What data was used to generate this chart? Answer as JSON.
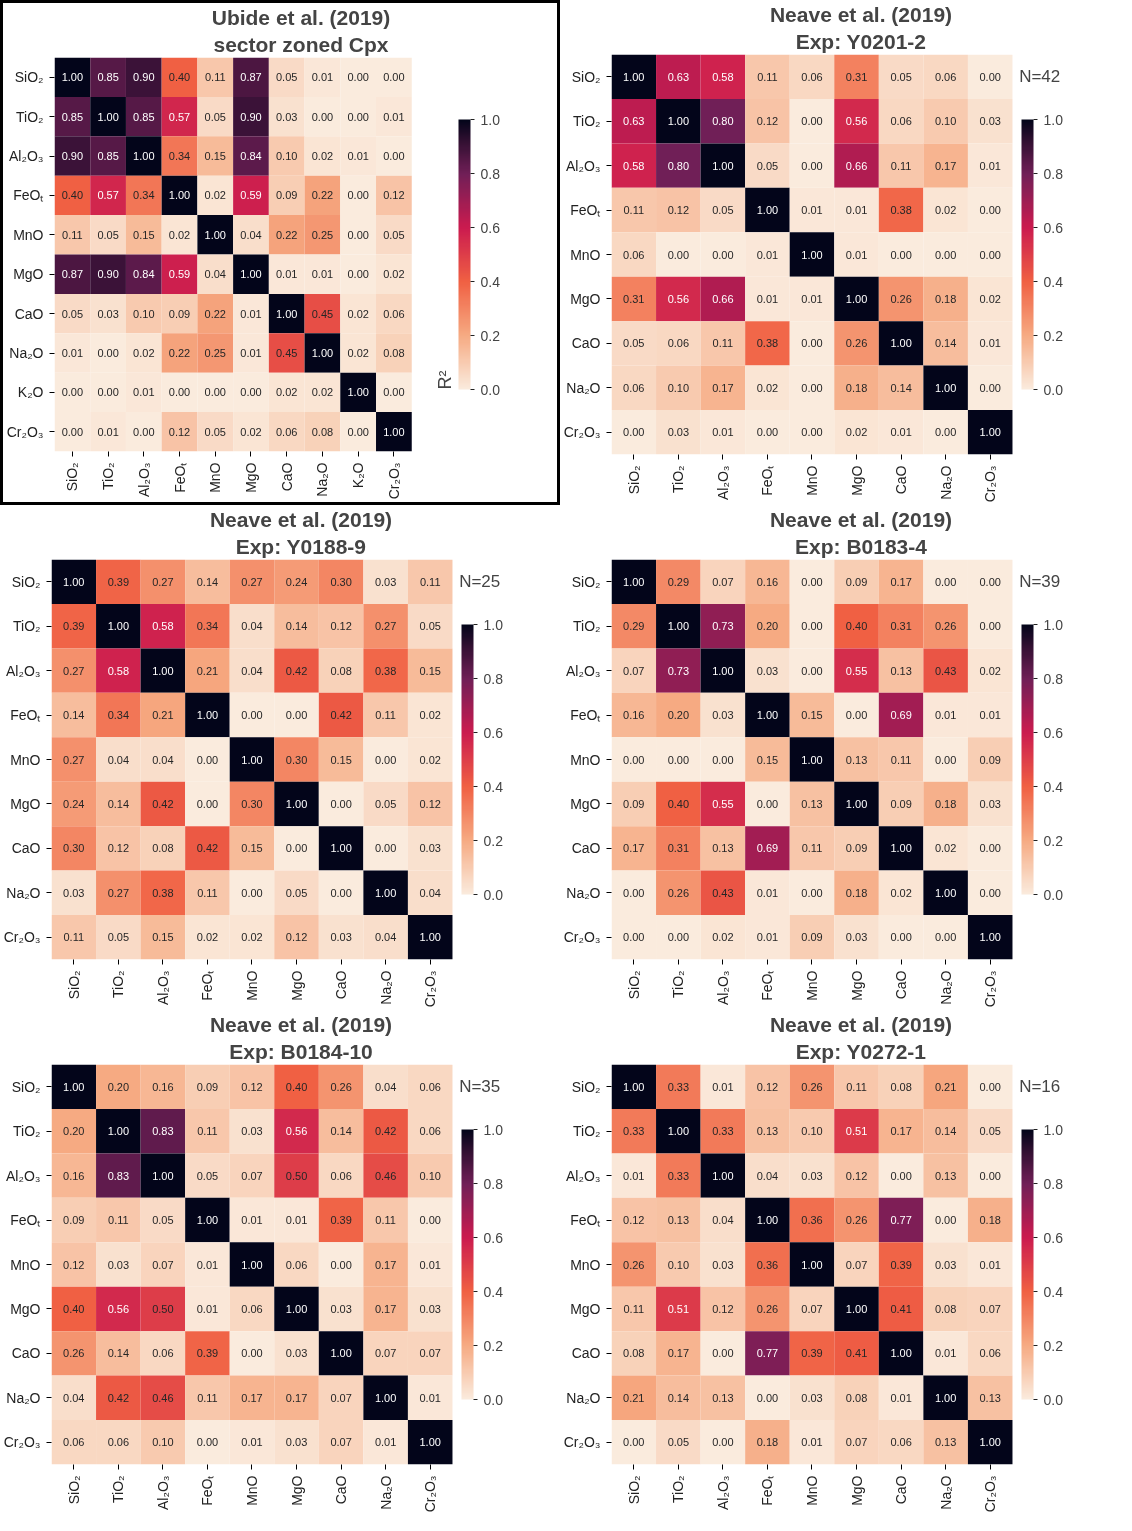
{
  "chart_data": [
    {
      "type": "heatmap",
      "title": "Ubide et al. (2019)",
      "subtitle": "sector zoned Cpx",
      "clabel": "R²",
      "clim": [
        0,
        1
      ],
      "cticks": [
        {
          "value": 0,
          "label": "0.0"
        },
        {
          "value": 0.2,
          "label": "0.2"
        },
        {
          "value": 0.4,
          "label": "0.4"
        },
        {
          "value": 0.6,
          "label": "0.6"
        },
        {
          "value": 0.8,
          "label": "0.8"
        },
        {
          "value": 1,
          "label": "1.0"
        }
      ],
      "categories": [
        "SiO₂",
        "TiO₂",
        "Al₂O₃",
        "FeOₜ",
        "MnO",
        "MgO",
        "CaO",
        "Na₂O",
        "K₂O",
        "Cr₂O₃"
      ],
      "y_categories": [
        "SiO₂",
        "TiO₂",
        "Al₂O₃",
        "FeOₜ",
        "MnO",
        "MgO",
        "CaO",
        "Na₂O",
        "K₂O",
        "Cr₂O₃"
      ],
      "cells": [
        [
          1.0,
          0.85,
          0.9,
          0.4,
          0.11,
          0.87,
          0.05,
          0.01,
          0.0,
          0.0
        ],
        [
          0.85,
          1.0,
          0.85,
          0.57,
          0.05,
          0.9,
          0.03,
          0.0,
          0.0,
          0.01
        ],
        [
          0.9,
          0.85,
          1.0,
          0.34,
          0.15,
          0.84,
          0.1,
          0.02,
          0.01,
          0.0
        ],
        [
          0.4,
          0.57,
          0.34,
          1.0,
          0.02,
          0.59,
          0.09,
          0.22,
          0.0,
          0.12
        ],
        [
          0.11,
          0.05,
          0.15,
          0.02,
          1.0,
          0.04,
          0.22,
          0.25,
          0.0,
          0.05
        ],
        [
          0.87,
          0.9,
          0.84,
          0.59,
          0.04,
          1.0,
          0.01,
          0.01,
          0.0,
          0.02
        ],
        [
          0.05,
          0.03,
          0.1,
          0.09,
          0.22,
          0.01,
          1.0,
          0.45,
          0.02,
          0.06
        ],
        [
          0.01,
          0.0,
          0.02,
          0.22,
          0.25,
          0.01,
          0.45,
          1.0,
          0.02,
          0.08
        ],
        [
          0.0,
          0.0,
          0.01,
          0.0,
          0.0,
          0.0,
          0.02,
          0.02,
          1.0,
          0.0
        ],
        [
          0.0,
          0.01,
          0.0,
          0.12,
          0.05,
          0.02,
          0.06,
          0.08,
          0.0,
          1.0
        ]
      ],
      "cell_labels": [
        [
          "1.00",
          "0.85",
          "0.90",
          "0.40",
          "0.11",
          "0.87",
          "0.05",
          "0.01",
          "0.00",
          "0.00"
        ],
        [
          "0.85",
          "1.00",
          "0.85",
          "0.57",
          "0.05",
          "0.90",
          "0.03",
          "0.00",
          "0.00",
          "0.01"
        ],
        [
          "0.90",
          "0.85",
          "1.00",
          "0.34",
          "0.15",
          "0.84",
          "0.10",
          "0.02",
          "0.01",
          "0.00"
        ],
        [
          "0.40",
          "0.57",
          "0.34",
          "1.00",
          "0.02",
          "0.59",
          "0.09",
          "0.22",
          "0.00",
          "0.12"
        ],
        [
          "0.11",
          "0.05",
          "0.15",
          "0.02",
          "1.00",
          "0.04",
          "0.22",
          "0.25",
          "0.00",
          "0.05"
        ],
        [
          "0.87",
          "0.90",
          "0.84",
          "0.59",
          "0.04",
          "1.00",
          "0.01",
          "0.01",
          "0.00",
          "0.02"
        ],
        [
          "0.05",
          "0.03",
          "0.10",
          "0.09",
          "0.22",
          "0.01",
          "1.00",
          "0.45",
          "0.02",
          "0.06"
        ],
        [
          "0.01",
          "0.00",
          "0.02",
          "0.22",
          "0.25",
          "0.01",
          "0.45",
          "1.00",
          "0.02",
          "0.08"
        ],
        [
          "0.00",
          "0.00",
          "0.01",
          "0.00",
          "0.00",
          "0.00",
          "0.02",
          "0.02",
          "1.00",
          "0.00"
        ],
        [
          "0.00",
          "0.01",
          "0.00",
          "0.12",
          "0.05",
          "0.02",
          "0.06",
          "0.08",
          "0.00",
          "1.00"
        ]
      ]
    },
    {
      "type": "heatmap",
      "title": "Neave et al. (2019)",
      "subtitle": "Exp: Y0201-2",
      "annotations": [
        "N=42"
      ],
      "clim": [
        0,
        1
      ],
      "cticks": [
        {
          "value": 0,
          "label": "0.0"
        },
        {
          "value": 0.2,
          "label": "0.2"
        },
        {
          "value": 0.4,
          "label": "0.4"
        },
        {
          "value": 0.6,
          "label": "0.6"
        },
        {
          "value": 0.8,
          "label": "0.8"
        },
        {
          "value": 1,
          "label": "1.0"
        }
      ],
      "categories": [
        "SiO₂",
        "TiO₂",
        "Al₂O₃",
        "FeOₜ",
        "MnO",
        "MgO",
        "CaO",
        "Na₂O",
        "Cr₂O₃"
      ],
      "y_categories": [
        "SiO₂",
        "TiO₂",
        "Al₂O₃",
        "FeOₜ",
        "MnO",
        "MgO",
        "CaO",
        "Na₂O",
        "Cr₂O₃"
      ],
      "cells": [
        [
          1.0,
          0.63,
          0.58,
          0.11,
          0.06,
          0.31,
          0.05,
          0.06,
          0.0
        ],
        [
          0.63,
          1.0,
          0.8,
          0.12,
          0.0,
          0.56,
          0.06,
          0.1,
          0.03
        ],
        [
          0.58,
          0.8,
          1.0,
          0.05,
          0.0,
          0.66,
          0.11,
          0.17,
          0.01
        ],
        [
          0.11,
          0.12,
          0.05,
          1.0,
          0.01,
          0.01,
          0.38,
          0.02,
          0.0
        ],
        [
          0.06,
          0.0,
          0.0,
          0.01,
          1.0,
          0.01,
          0.0,
          0.0,
          0.0
        ],
        [
          0.31,
          0.56,
          0.66,
          0.01,
          0.01,
          1.0,
          0.26,
          0.18,
          0.02
        ],
        [
          0.05,
          0.06,
          0.11,
          0.38,
          0.0,
          0.26,
          1.0,
          0.14,
          0.01
        ],
        [
          0.06,
          0.1,
          0.17,
          0.02,
          0.0,
          0.18,
          0.14,
          1.0,
          0.0
        ],
        [
          0.0,
          0.03,
          0.01,
          0.0,
          0.0,
          0.02,
          0.01,
          0.0,
          1.0
        ]
      ],
      "cell_labels": [
        [
          "1.00",
          "0.63",
          "0.58",
          "0.11",
          "0.06",
          "0.31",
          "0.05",
          "0.06",
          "0.00"
        ],
        [
          "0.63",
          "1.00",
          "0.80",
          "0.12",
          "0.00",
          "0.56",
          "0.06",
          "0.10",
          "0.03"
        ],
        [
          "0.58",
          "0.80",
          "1.00",
          "0.05",
          "0.00",
          "0.66",
          "0.11",
          "0.17",
          "0.01"
        ],
        [
          "0.11",
          "0.12",
          "0.05",
          "1.00",
          "0.01",
          "0.01",
          "0.38",
          "0.02",
          "0.00"
        ],
        [
          "0.06",
          "0.00",
          "0.00",
          "0.01",
          "1.00",
          "0.01",
          "0.00",
          "0.00",
          "0.00"
        ],
        [
          "0.31",
          "0.56",
          "0.66",
          "0.01",
          "0.01",
          "1.00",
          "0.26",
          "0.18",
          "0.02"
        ],
        [
          "0.05",
          "0.06",
          "0.11",
          "0.38",
          "0.00",
          "0.26",
          "1.00",
          "0.14",
          "0.01"
        ],
        [
          "0.06",
          "0.10",
          "0.17",
          "0.02",
          "0.00",
          "0.18",
          "0.14",
          "1.00",
          "0.00"
        ],
        [
          "0.00",
          "0.03",
          "0.01",
          "0.00",
          "0.00",
          "0.02",
          "0.01",
          "0.00",
          "1.00"
        ]
      ]
    },
    {
      "type": "heatmap",
      "title": "Neave et al. (2019)",
      "subtitle": "Exp: Y0188-9",
      "annotations": [
        "N=25"
      ],
      "clim": [
        0,
        1
      ],
      "cticks": [
        {
          "value": 0,
          "label": "0.0"
        },
        {
          "value": 0.2,
          "label": "0.2"
        },
        {
          "value": 0.4,
          "label": "0.4"
        },
        {
          "value": 0.6,
          "label": "0.6"
        },
        {
          "value": 0.8,
          "label": "0.8"
        },
        {
          "value": 1,
          "label": "1.0"
        }
      ],
      "categories": [
        "SiO₂",
        "TiO₂",
        "Al₂O₃",
        "FeOₜ",
        "MnO",
        "MgO",
        "CaO",
        "Na₂O",
        "Cr₂O₃"
      ],
      "y_categories": [
        "SiO₂",
        "TiO₂",
        "Al₂O₃",
        "FeOₜ",
        "MnO",
        "MgO",
        "CaO",
        "Na₂O",
        "Cr₂O₃"
      ],
      "cells": [
        [
          1.0,
          0.39,
          0.27,
          0.14,
          0.27,
          0.24,
          0.3,
          0.03,
          0.11
        ],
        [
          0.39,
          1.0,
          0.58,
          0.34,
          0.04,
          0.14,
          0.12,
          0.27,
          0.05
        ],
        [
          0.27,
          0.58,
          1.0,
          0.21,
          0.04,
          0.42,
          0.08,
          0.38,
          0.15
        ],
        [
          0.14,
          0.34,
          0.21,
          1.0,
          0.0,
          0.0,
          0.42,
          0.11,
          0.02
        ],
        [
          0.27,
          0.04,
          0.04,
          0.0,
          1.0,
          0.3,
          0.15,
          0.0,
          0.02
        ],
        [
          0.24,
          0.14,
          0.42,
          0.0,
          0.3,
          1.0,
          0.0,
          0.05,
          0.12
        ],
        [
          0.3,
          0.12,
          0.08,
          0.42,
          0.15,
          0.0,
          1.0,
          0.0,
          0.03
        ],
        [
          0.03,
          0.27,
          0.38,
          0.11,
          0.0,
          0.05,
          0.0,
          1.0,
          0.04
        ],
        [
          0.11,
          0.05,
          0.15,
          0.02,
          0.02,
          0.12,
          0.03,
          0.04,
          1.0
        ]
      ],
      "cell_labels": [
        [
          "1.00",
          "0.39",
          "0.27",
          "0.14",
          "0.27",
          "0.24",
          "0.30",
          "0.03",
          "0.11"
        ],
        [
          "0.39",
          "1.00",
          "0.58",
          "0.34",
          "0.04",
          "0.14",
          "0.12",
          "0.27",
          "0.05"
        ],
        [
          "0.27",
          "0.58",
          "1.00",
          "0.21",
          "0.04",
          "0.42",
          "0.08",
          "0.38",
          "0.15"
        ],
        [
          "0.14",
          "0.34",
          "0.21",
          "1.00",
          "0.00",
          "0.00",
          "0.42",
          "0.11",
          "0.02"
        ],
        [
          "0.27",
          "0.04",
          "0.04",
          "0.00",
          "1.00",
          "0.30",
          "0.15",
          "0.00",
          "0.02"
        ],
        [
          "0.24",
          "0.14",
          "0.42",
          "0.00",
          "0.30",
          "1.00",
          "0.00",
          "0.05",
          "0.12"
        ],
        [
          "0.30",
          "0.12",
          "0.08",
          "0.42",
          "0.15",
          "0.00",
          "1.00",
          "0.00",
          "0.03"
        ],
        [
          "0.03",
          "0.27",
          "0.38",
          "0.11",
          "0.00",
          "0.05",
          "0.00",
          "1.00",
          "0.04"
        ],
        [
          "0.11",
          "0.05",
          "0.15",
          "0.02",
          "0.02",
          "0.12",
          "0.03",
          "0.04",
          "1.00"
        ]
      ]
    },
    {
      "type": "heatmap",
      "title": "Neave et al. (2019)",
      "subtitle": "Exp: B0183-4",
      "annotations": [
        "N=39"
      ],
      "clim": [
        0,
        1
      ],
      "cticks": [
        {
          "value": 0,
          "label": "0.0"
        },
        {
          "value": 0.2,
          "label": "0.2"
        },
        {
          "value": 0.4,
          "label": "0.4"
        },
        {
          "value": 0.6,
          "label": "0.6"
        },
        {
          "value": 0.8,
          "label": "0.8"
        },
        {
          "value": 1,
          "label": "1.0"
        }
      ],
      "categories": [
        "SiO₂",
        "TiO₂",
        "Al₂O₃",
        "FeOₜ",
        "MnO",
        "MgO",
        "CaO",
        "Na₂O",
        "Cr₂O₃"
      ],
      "y_categories": [
        "SiO₂",
        "TiO₂",
        "Al₂O₃",
        "FeOₜ",
        "MnO",
        "MgO",
        "CaO",
        "Na₂O",
        "Cr₂O₃"
      ],
      "cells": [
        [
          1.0,
          0.29,
          0.07,
          0.16,
          0.0,
          0.09,
          0.17,
          0.0,
          0.0
        ],
        [
          0.29,
          1.0,
          0.73,
          0.2,
          0.0,
          0.4,
          0.31,
          0.26,
          0.0
        ],
        [
          0.07,
          0.73,
          1.0,
          0.03,
          0.0,
          0.55,
          0.13,
          0.43,
          0.02
        ],
        [
          0.16,
          0.2,
          0.03,
          1.0,
          0.15,
          0.0,
          0.69,
          0.01,
          0.01
        ],
        [
          0.0,
          0.0,
          0.0,
          0.15,
          1.0,
          0.13,
          0.11,
          0.0,
          0.09
        ],
        [
          0.09,
          0.4,
          0.55,
          0.0,
          0.13,
          1.0,
          0.09,
          0.18,
          0.03
        ],
        [
          0.17,
          0.31,
          0.13,
          0.69,
          0.11,
          0.09,
          1.0,
          0.02,
          0.0
        ],
        [
          0.0,
          0.26,
          0.43,
          0.01,
          0.0,
          0.18,
          0.02,
          1.0,
          0.0
        ],
        [
          0.0,
          0.0,
          0.02,
          0.01,
          0.09,
          0.03,
          0.0,
          0.0,
          1.0
        ]
      ],
      "cell_labels": [
        [
          "1.00",
          "0.29",
          "0.07",
          "0.16",
          "0.00",
          "0.09",
          "0.17",
          "0.00",
          "0.00"
        ],
        [
          "0.29",
          "1.00",
          "0.73",
          "0.20",
          "0.00",
          "0.40",
          "0.31",
          "0.26",
          "0.00"
        ],
        [
          "0.07",
          "0.73",
          "1.00",
          "0.03",
          "0.00",
          "0.55",
          "0.13",
          "0.43",
          "0.02"
        ],
        [
          "0.16",
          "0.20",
          "0.03",
          "1.00",
          "0.15",
          "0.00",
          "0.69",
          "0.01",
          "0.01"
        ],
        [
          "0.00",
          "0.00",
          "0.00",
          "0.15",
          "1.00",
          "0.13",
          "0.11",
          "0.00",
          "0.09"
        ],
        [
          "0.09",
          "0.40",
          "0.55",
          "0.00",
          "0.13",
          "1.00",
          "0.09",
          "0.18",
          "0.03"
        ],
        [
          "0.17",
          "0.31",
          "0.13",
          "0.69",
          "0.11",
          "0.09",
          "1.00",
          "0.02",
          "0.00"
        ],
        [
          "0.00",
          "0.26",
          "0.43",
          "0.01",
          "0.00",
          "0.18",
          "0.02",
          "1.00",
          "0.00"
        ],
        [
          "0.00",
          "0.00",
          "0.02",
          "0.01",
          "0.09",
          "0.03",
          "0.00",
          "0.00",
          "1.00"
        ]
      ]
    },
    {
      "type": "heatmap",
      "title": "Neave et al. (2019)",
      "subtitle": "Exp: B0184-10",
      "annotations": [
        "N=35"
      ],
      "clim": [
        0,
        1
      ],
      "cticks": [
        {
          "value": 0,
          "label": "0.0"
        },
        {
          "value": 0.2,
          "label": "0.2"
        },
        {
          "value": 0.4,
          "label": "0.4"
        },
        {
          "value": 0.6,
          "label": "0.6"
        },
        {
          "value": 0.8,
          "label": "0.8"
        },
        {
          "value": 1,
          "label": "1.0"
        }
      ],
      "categories": [
        "SiO₂",
        "TiO₂",
        "Al₂O₃",
        "FeOₜ",
        "MnO",
        "MgO",
        "CaO",
        "Na₂O",
        "Cr₂O₃"
      ],
      "y_categories": [
        "SiO₂",
        "TiO₂",
        "Al₂O₃",
        "FeOₜ",
        "MnO",
        "MgO",
        "CaO",
        "Na₂O",
        "Cr₂O₃"
      ],
      "cells": [
        [
          1.0,
          0.2,
          0.16,
          0.09,
          0.12,
          0.4,
          0.26,
          0.04,
          0.06
        ],
        [
          0.2,
          1.0,
          0.83,
          0.11,
          0.03,
          0.56,
          0.14,
          0.42,
          0.06
        ],
        [
          0.16,
          0.83,
          1.0,
          0.05,
          0.07,
          0.5,
          0.06,
          0.46,
          0.1
        ],
        [
          0.09,
          0.11,
          0.05,
          1.0,
          0.01,
          0.01,
          0.39,
          0.11,
          0.0
        ],
        [
          0.12,
          0.03,
          0.07,
          0.01,
          1.0,
          0.06,
          0.0,
          0.17,
          0.01
        ],
        [
          0.4,
          0.56,
          0.5,
          0.01,
          0.06,
          1.0,
          0.03,
          0.17,
          0.03
        ],
        [
          0.26,
          0.14,
          0.06,
          0.39,
          0.0,
          0.03,
          1.0,
          0.07,
          0.07
        ],
        [
          0.04,
          0.42,
          0.46,
          0.11,
          0.17,
          0.17,
          0.07,
          1.0,
          0.01
        ],
        [
          0.06,
          0.06,
          0.1,
          0.0,
          0.01,
          0.03,
          0.07,
          0.01,
          1.0
        ]
      ],
      "cell_labels": [
        [
          "1.00",
          "0.20",
          "0.16",
          "0.09",
          "0.12",
          "0.40",
          "0.26",
          "0.04",
          "0.06"
        ],
        [
          "0.20",
          "1.00",
          "0.83",
          "0.11",
          "0.03",
          "0.56",
          "0.14",
          "0.42",
          "0.06"
        ],
        [
          "0.16",
          "0.83",
          "1.00",
          "0.05",
          "0.07",
          "0.50",
          "0.06",
          "0.46",
          "0.10"
        ],
        [
          "0.09",
          "0.11",
          "0.05",
          "1.00",
          "0.01",
          "0.01",
          "0.39",
          "0.11",
          "0.00"
        ],
        [
          "0.12",
          "0.03",
          "0.07",
          "0.01",
          "1.00",
          "0.06",
          "0.00",
          "0.17",
          "0.01"
        ],
        [
          "0.40",
          "0.56",
          "0.50",
          "0.01",
          "0.06",
          "1.00",
          "0.03",
          "0.17",
          "0.03"
        ],
        [
          "0.26",
          "0.14",
          "0.06",
          "0.39",
          "0.00",
          "0.03",
          "1.00",
          "0.07",
          "0.07"
        ],
        [
          "0.04",
          "0.42",
          "0.46",
          "0.11",
          "0.17",
          "0.17",
          "0.07",
          "1.00",
          "0.01"
        ],
        [
          "0.06",
          "0.06",
          "0.10",
          "0.00",
          "0.01",
          "0.03",
          "0.07",
          "0.01",
          "1.00"
        ]
      ]
    },
    {
      "type": "heatmap",
      "title": "Neave et al. (2019)",
      "subtitle": "Exp: Y0272-1",
      "annotations": [
        "N=16"
      ],
      "clim": [
        0,
        1
      ],
      "cticks": [
        {
          "value": 0,
          "label": "0.0"
        },
        {
          "value": 0.2,
          "label": "0.2"
        },
        {
          "value": 0.4,
          "label": "0.4"
        },
        {
          "value": 0.6,
          "label": "0.6"
        },
        {
          "value": 0.8,
          "label": "0.8"
        },
        {
          "value": 1,
          "label": "1.0"
        }
      ],
      "categories": [
        "SiO₂",
        "TiO₂",
        "Al₂O₃",
        "FeOₜ",
        "MnO",
        "MgO",
        "CaO",
        "Na₂O",
        "Cr₂O₃"
      ],
      "y_categories": [
        "SiO₂",
        "TiO₂",
        "Al₂O₃",
        "FeOₜ",
        "MnO",
        "MgO",
        "CaO",
        "Na₂O",
        "Cr₂O₃"
      ],
      "cells": [
        [
          1.0,
          0.33,
          0.01,
          0.12,
          0.26,
          0.11,
          0.08,
          0.21,
          0.0
        ],
        [
          0.33,
          1.0,
          0.33,
          0.13,
          0.1,
          0.51,
          0.17,
          0.14,
          0.05
        ],
        [
          0.01,
          0.33,
          1.0,
          0.04,
          0.03,
          0.12,
          0.0,
          0.13,
          0.0
        ],
        [
          0.12,
          0.13,
          0.04,
          1.0,
          0.36,
          0.26,
          0.77,
          0.0,
          0.18
        ],
        [
          0.26,
          0.1,
          0.03,
          0.36,
          1.0,
          0.07,
          0.39,
          0.03,
          0.01
        ],
        [
          0.11,
          0.51,
          0.12,
          0.26,
          0.07,
          1.0,
          0.41,
          0.08,
          0.07
        ],
        [
          0.08,
          0.17,
          0.0,
          0.77,
          0.39,
          0.41,
          1.0,
          0.01,
          0.06
        ],
        [
          0.21,
          0.14,
          0.13,
          0.0,
          0.03,
          0.08,
          0.01,
          1.0,
          0.13
        ],
        [
          0.0,
          0.05,
          0.0,
          0.18,
          0.01,
          0.07,
          0.06,
          0.13,
          1.0
        ]
      ],
      "cell_labels": [
        [
          "1.00",
          "0.33",
          "0.01",
          "0.12",
          "0.26",
          "0.11",
          "0.08",
          "0.21",
          "0.00"
        ],
        [
          "0.33",
          "1.00",
          "0.33",
          "0.13",
          "0.10",
          "0.51",
          "0.17",
          "0.14",
          "0.05"
        ],
        [
          "0.01",
          "0.33",
          "1.00",
          "0.04",
          "0.03",
          "0.12",
          "0.00",
          "0.13",
          "0.00"
        ],
        [
          "0.12",
          "0.13",
          "0.04",
          "1.00",
          "0.36",
          "0.26",
          "0.77",
          "0.00",
          "0.18"
        ],
        [
          "0.26",
          "0.10",
          "0.03",
          "0.36",
          "1.00",
          "0.07",
          "0.39",
          "0.03",
          "0.01"
        ],
        [
          "0.11",
          "0.51",
          "0.12",
          "0.26",
          "0.07",
          "1.00",
          "0.41",
          "0.08",
          "0.07"
        ],
        [
          "0.08",
          "0.17",
          "0.00",
          "0.77",
          "0.39",
          "0.41",
          "1.00",
          "0.01",
          "0.06"
        ],
        [
          "0.21",
          "0.14",
          "0.13",
          "0.00",
          "0.03",
          "0.08",
          "0.01",
          "1.00",
          "0.13"
        ],
        [
          "0.00",
          "0.05",
          "0.00",
          "0.18",
          "0.01",
          "0.07",
          "0.06",
          "0.13",
          "1.00"
        ]
      ]
    }
  ]
}
